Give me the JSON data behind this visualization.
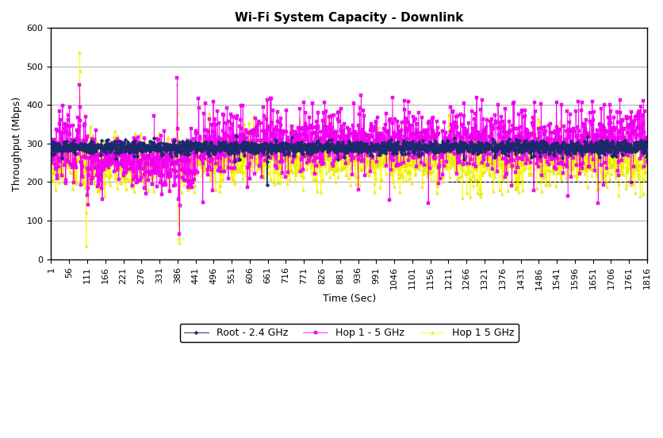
{
  "title": "Wi-Fi System Capacity - Downlink",
  "xlabel": "Time (Sec)",
  "ylabel": "Throughput (Mbps)",
  "xlim": [
    1,
    1816
  ],
  "ylim": [
    0,
    600
  ],
  "yticks": [
    0,
    100,
    200,
    300,
    400,
    500,
    600
  ],
  "xticks": [
    1,
    56,
    111,
    166,
    221,
    276,
    331,
    386,
    441,
    496,
    551,
    606,
    661,
    716,
    771,
    826,
    881,
    936,
    991,
    1046,
    1101,
    1156,
    1211,
    1266,
    1321,
    1376,
    1431,
    1486,
    1541,
    1596,
    1651,
    1706,
    1761,
    1816
  ],
  "dashed_line_y": 200,
  "dashed_line_x_start": 1210,
  "background_color": "#ffffff",
  "title_fontsize": 11,
  "axis_fontsize": 9,
  "tick_fontsize": 8
}
